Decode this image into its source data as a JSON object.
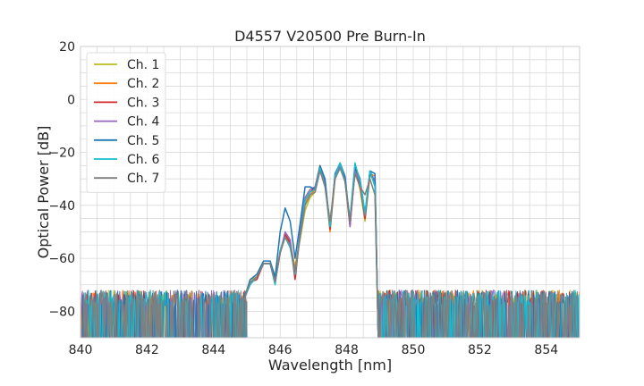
{
  "chart_data": {
    "type": "line",
    "title": "D4557 V20500 Pre Burn-In",
    "xlabel": "Wavelength [nm]",
    "ylabel": "Optical Power [dB]",
    "xlim": [
      840,
      855
    ],
    "ylim": [
      -90,
      20
    ],
    "xticks": [
      840,
      842,
      844,
      846,
      848,
      850,
      852,
      854
    ],
    "yticks": [
      -80,
      -60,
      -40,
      -20,
      0,
      20
    ],
    "grid": true,
    "legend_position": "upper-left",
    "noise_floor": [
      -90,
      -72
    ],
    "series": [
      {
        "name": "Ch. 1",
        "color": "#bcbd22",
        "x": [
          844.9,
          845.1,
          845.3,
          845.5,
          845.7,
          845.85,
          846.0,
          846.15,
          846.3,
          846.45,
          846.6,
          846.75,
          846.9,
          847.05,
          847.2,
          847.35,
          847.5,
          847.65,
          847.8,
          847.95,
          848.1,
          848.25,
          848.4,
          848.55,
          848.7,
          848.85,
          848.95
        ],
        "y": [
          -76,
          -68,
          -67,
          -62,
          -62,
          -69,
          -58,
          -52,
          -55,
          -63,
          -53,
          -42,
          -37,
          -35,
          -26,
          -32,
          -49,
          -30,
          -25,
          -31,
          -48,
          -26,
          -34,
          -46,
          -29,
          -30,
          -90
        ]
      },
      {
        "name": "Ch. 2",
        "color": "#ff7f0e",
        "x": [
          844.9,
          845.1,
          845.3,
          845.5,
          845.7,
          845.85,
          846.0,
          846.15,
          846.3,
          846.45,
          846.6,
          846.75,
          846.9,
          847.05,
          847.2,
          847.35,
          847.5,
          847.65,
          847.8,
          847.95,
          848.1,
          848.25,
          848.4,
          848.55,
          848.7,
          848.85,
          848.95
        ],
        "y": [
          -76,
          -69,
          -67,
          -62,
          -62,
          -68,
          -57,
          -51,
          -54,
          -64,
          -52,
          -39,
          -36,
          -34,
          -25,
          -32,
          -50,
          -30,
          -25,
          -30,
          -47,
          -25,
          -33,
          -44,
          -28,
          -29,
          -90
        ]
      },
      {
        "name": "Ch. 3",
        "color": "#d62728",
        "x": [
          844.9,
          845.1,
          845.3,
          845.5,
          845.7,
          845.85,
          846.0,
          846.15,
          846.3,
          846.45,
          846.6,
          846.75,
          846.9,
          847.05,
          847.2,
          847.35,
          847.5,
          847.65,
          847.8,
          847.95,
          848.1,
          848.25,
          848.4,
          848.55,
          848.7,
          848.85,
          848.95
        ],
        "y": [
          -76,
          -69,
          -68,
          -62,
          -62,
          -69,
          -58,
          -51,
          -54,
          -68,
          -51,
          -38,
          -35,
          -33,
          -25,
          -31,
          -49,
          -29,
          -24,
          -30,
          -48,
          -26,
          -32,
          -45,
          -28,
          -31,
          -90
        ]
      },
      {
        "name": "Ch. 4",
        "color": "#9467bd",
        "x": [
          844.9,
          845.1,
          845.3,
          845.5,
          845.7,
          845.85,
          846.0,
          846.15,
          846.3,
          846.45,
          846.6,
          846.75,
          846.9,
          847.05,
          847.2,
          847.35,
          847.5,
          847.65,
          847.8,
          847.95,
          848.1,
          848.25,
          848.4,
          848.55,
          848.7,
          848.85,
          848.95
        ],
        "y": [
          -76,
          -69,
          -67,
          -62,
          -62,
          -69,
          -58,
          -50,
          -53,
          -66,
          -50,
          -37,
          -34,
          -33,
          -26,
          -31,
          -48,
          -29,
          -25,
          -29,
          -48,
          -27,
          -31,
          -44,
          -27,
          -31,
          -90
        ]
      },
      {
        "name": "Ch. 5",
        "color": "#1f77b4",
        "x": [
          844.9,
          845.1,
          845.3,
          845.5,
          845.7,
          845.85,
          846.0,
          846.15,
          846.3,
          846.45,
          846.6,
          846.75,
          846.9,
          847.05,
          847.2,
          847.35,
          847.5,
          847.65,
          847.8,
          847.95,
          848.1,
          848.25,
          848.4,
          848.55,
          848.7,
          848.85,
          848.95
        ],
        "y": [
          -76,
          -68,
          -66,
          -61,
          -61,
          -67,
          -50,
          -41,
          -46,
          -60,
          -47,
          -33,
          -33,
          -34,
          -25,
          -30,
          -48,
          -28,
          -24,
          -29,
          -46,
          -25,
          -30,
          -43,
          -27,
          -28,
          -90
        ]
      },
      {
        "name": "Ch. 6",
        "color": "#17becf",
        "x": [
          844.9,
          845.1,
          845.3,
          845.5,
          845.7,
          845.85,
          846.0,
          846.15,
          846.3,
          846.45,
          846.6,
          846.75,
          846.9,
          847.05,
          847.2,
          847.35,
          847.5,
          847.65,
          847.8,
          847.95,
          848.1,
          848.25,
          848.4,
          848.55,
          848.7,
          848.85,
          848.95
        ],
        "y": [
          -76,
          -70,
          -67,
          -62,
          -62,
          -70,
          -57,
          -52,
          -56,
          -66,
          -52,
          -38,
          -35,
          -34,
          -26,
          -33,
          -48,
          -29,
          -24,
          -31,
          -45,
          -24,
          -31,
          -43,
          -27,
          -33,
          -90
        ]
      },
      {
        "name": "Ch. 7",
        "color": "#7f7f7f",
        "x": [
          844.9,
          845.1,
          845.3,
          845.5,
          845.7,
          845.85,
          846.0,
          846.15,
          846.3,
          846.45,
          846.6,
          846.75,
          846.9,
          847.05,
          847.2,
          847.35,
          847.5,
          847.65,
          847.8,
          847.95,
          848.1,
          848.25,
          848.4,
          848.55,
          848.7,
          848.85,
          848.95
        ],
        "y": [
          -76,
          -69,
          -67,
          -62,
          -62,
          -69,
          -58,
          -52,
          -55,
          -65,
          -52,
          -40,
          -36,
          -35,
          -27,
          -33,
          -46,
          -30,
          -26,
          -31,
          -46,
          -28,
          -33,
          -36,
          -30,
          -36,
          -90
        ]
      }
    ]
  }
}
